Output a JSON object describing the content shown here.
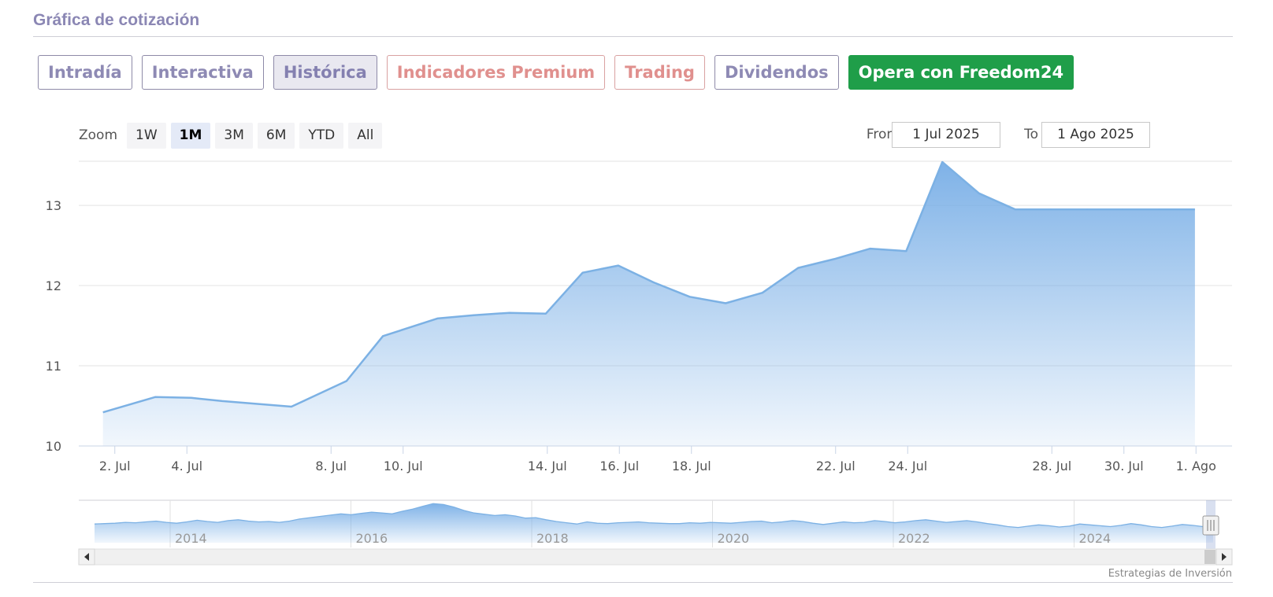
{
  "header": {
    "title": "Gráfica de cotización"
  },
  "tabs": [
    {
      "label": "Intradía",
      "style": "normal"
    },
    {
      "label": "Interactiva",
      "style": "normal"
    },
    {
      "label": "Histórica",
      "style": "active"
    },
    {
      "label": "Indicadores Premium",
      "style": "premium"
    },
    {
      "label": "Trading",
      "style": "premium"
    },
    {
      "label": "Dividendos",
      "style": "normal"
    },
    {
      "label": "Opera con Freedom24",
      "style": "cta"
    }
  ],
  "zoom": {
    "label": "Zoom",
    "buttons": [
      "1W",
      "1M",
      "3M",
      "6M",
      "YTD",
      "All"
    ],
    "selected": "1M"
  },
  "range": {
    "from_label": "From",
    "from_value": "1 Jul 2025",
    "to_label": "To",
    "to_value": "1 Ago 2025"
  },
  "colors": {
    "line": "#7cb1e4",
    "fill_top": "#78aee6",
    "fill_bottom": "#ffffff",
    "grid": "#e3e3e3"
  },
  "chart_data": {
    "type": "area",
    "ylim": [
      10,
      13.55
    ],
    "y_ticks": [
      10,
      11,
      12,
      13
    ],
    "x": [
      "1 Jul",
      "3 Jul",
      "4 Jul",
      "5 Jul",
      "7 Jul",
      "8 Jul",
      "9 Jul",
      "10 Jul",
      "11 Jul",
      "12 Jul",
      "13 Jul",
      "14 Jul",
      "15 Jul",
      "16 Jul",
      "17 Jul",
      "18 Jul",
      "19 Jul",
      "21 Jul",
      "22 Jul",
      "23 Jul",
      "24 Jul",
      "26 Jul",
      "27 Jul",
      "28 Jul",
      "29 Jul",
      "30 Jul",
      "31 Jul",
      "1 Ago",
      "2 Ago"
    ],
    "x_days": [
      0.67,
      2.12,
      3.12,
      3.98,
      5.9,
      7.43,
      8.44,
      9.95,
      10.96,
      11.95,
      12.96,
      13.98,
      14.97,
      15.95,
      16.95,
      17.95,
      18.97,
      19.96,
      20.96,
      21.96,
      22.96,
      23.96,
      24.98,
      25.98,
      26.97,
      27.98,
      28.97,
      29.97,
      30.97
    ],
    "values": [
      10.42,
      10.61,
      10.6,
      10.56,
      10.49,
      10.81,
      11.37,
      11.59,
      11.63,
      11.66,
      11.65,
      12.16,
      12.25,
      12.04,
      11.86,
      11.78,
      11.91,
      12.22,
      12.33,
      12.46,
      12.43,
      13.54,
      13.15,
      12.95,
      12.95,
      12.95,
      12.95,
      12.95,
      12.95
    ],
    "x_ticks": [
      {
        "label": "2. Jul",
        "day": 1
      },
      {
        "label": "4. Jul",
        "day": 3
      },
      {
        "label": "8. Jul",
        "day": 7
      },
      {
        "label": "10. Jul",
        "day": 9
      },
      {
        "label": "14. Jul",
        "day": 13
      },
      {
        "label": "16. Jul",
        "day": 15
      },
      {
        "label": "18. Jul",
        "day": 17
      },
      {
        "label": "22. Jul",
        "day": 21
      },
      {
        "label": "24. Jul",
        "day": 23
      },
      {
        "label": "28. Jul",
        "day": 27
      },
      {
        "label": "30. Jul",
        "day": 29
      },
      {
        "label": "1. Ago",
        "day": 31
      }
    ],
    "x_range_days": [
      0,
      32
    ]
  },
  "navigator": {
    "year_labels": [
      "2014",
      "2016",
      "2018",
      "2020",
      "2022",
      "2024"
    ],
    "series": [
      10.4,
      10.5,
      10.6,
      10.8,
      10.7,
      10.9,
      11.1,
      10.8,
      10.6,
      10.9,
      11.3,
      11.0,
      10.8,
      11.2,
      11.4,
      11.1,
      10.9,
      11.0,
      10.8,
      11.1,
      11.6,
      11.9,
      12.2,
      12.5,
      12.8,
      12.6,
      12.9,
      13.2,
      13.0,
      12.8,
      13.4,
      13.9,
      14.6,
      15.2,
      15.0,
      14.4,
      13.6,
      13.0,
      12.7,
      12.4,
      12.6,
      12.3,
      11.8,
      11.9,
      11.4,
      11.0,
      10.7,
      10.4,
      10.9,
      10.6,
      10.5,
      10.7,
      10.8,
      10.9,
      10.7,
      10.6,
      10.5,
      10.5,
      10.7,
      10.6,
      10.8,
      10.7,
      10.6,
      10.8,
      11.0,
      11.1,
      10.7,
      10.9,
      11.2,
      11.0,
      10.6,
      10.3,
      10.6,
      10.9,
      10.7,
      10.8,
      11.2,
      11.0,
      10.7,
      10.9,
      11.2,
      11.4,
      11.1,
      10.8,
      11.0,
      11.2,
      10.9,
      10.5,
      10.2,
      9.8,
      9.6,
      9.9,
      10.2,
      10.0,
      9.7,
      9.9,
      10.4,
      10.2,
      10.0,
      9.8,
      10.1,
      10.5,
      10.2,
      9.8,
      9.6,
      9.9,
      10.3,
      10.1,
      9.8,
      9.7
    ],
    "ylim": [
      6.0,
      16.0
    ]
  },
  "credit": "Estrategias de Inversión"
}
